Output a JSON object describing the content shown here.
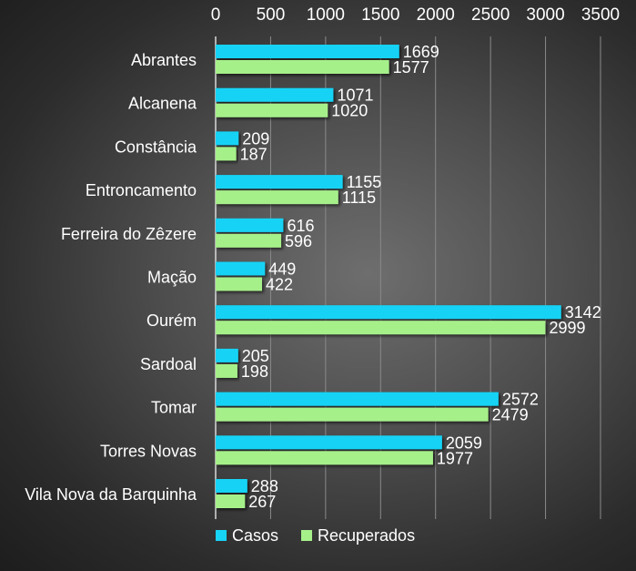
{
  "chart_data": {
    "type": "bar",
    "orientation": "horizontal",
    "categories": [
      "Abrantes",
      "Alcanena",
      "Constância",
      "Entroncamento",
      "Ferreira do Zêzere",
      "Mação",
      "Ourém",
      "Sardoal",
      "Tomar",
      "Torres Novas",
      "Vila Nova da Barquinha"
    ],
    "series": [
      {
        "name": "Casos",
        "color": "#17d3f5",
        "values": [
          1669,
          1071,
          209,
          1155,
          616,
          449,
          3142,
          205,
          2572,
          2059,
          288
        ]
      },
      {
        "name": "Recuperados",
        "color": "#a6f08a",
        "values": [
          1577,
          1020,
          187,
          1115,
          596,
          422,
          2999,
          198,
          2479,
          1977,
          267
        ]
      }
    ],
    "xlim": [
      0,
      3500
    ],
    "x_ticks": [
      "0",
      "500",
      "1000",
      "1500",
      "2000",
      "2500",
      "3000",
      "3500"
    ],
    "x_axis_position": "top",
    "grid": true,
    "data_labels": true,
    "legend_position": "bottom-left"
  }
}
